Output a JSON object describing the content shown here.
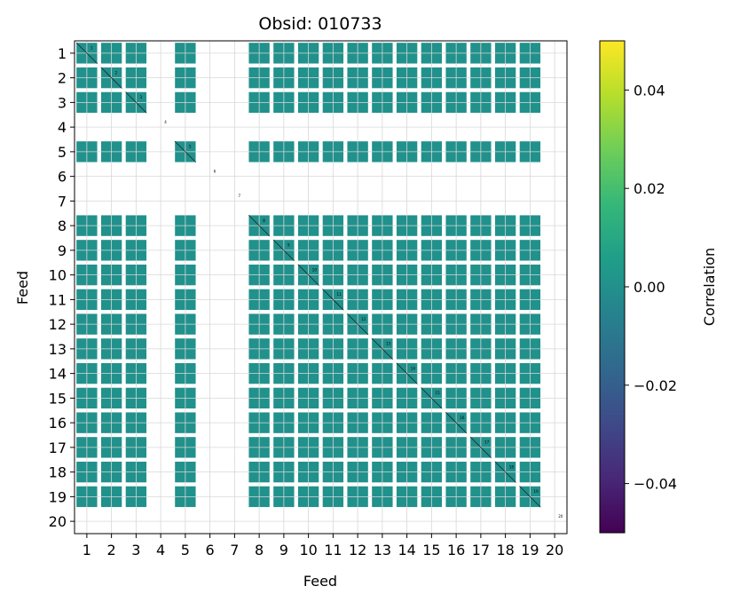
{
  "chart_data": {
    "type": "heatmap",
    "title": "Obsid: 010733",
    "xlabel": "Feed",
    "ylabel": "Feed",
    "feeds": [
      1,
      2,
      3,
      4,
      5,
      6,
      7,
      8,
      9,
      10,
      11,
      12,
      13,
      14,
      15,
      16,
      17,
      18,
      19,
      20
    ],
    "x_ticks": [
      "1",
      "2",
      "3",
      "4",
      "5",
      "6",
      "7",
      "8",
      "9",
      "10",
      "11",
      "12",
      "13",
      "14",
      "15",
      "16",
      "17",
      "18",
      "19",
      "20"
    ],
    "y_ticks": [
      "1",
      "2",
      "3",
      "4",
      "5",
      "6",
      "7",
      "8",
      "9",
      "10",
      "11",
      "12",
      "13",
      "14",
      "15",
      "16",
      "17",
      "18",
      "19",
      "20"
    ],
    "active_feeds": [
      1,
      2,
      3,
      5,
      8,
      9,
      10,
      11,
      12,
      13,
      14,
      15,
      16,
      17,
      18,
      19
    ],
    "cell_value": 0.0,
    "cell_color": "#21918c",
    "grid": true,
    "colorbar": {
      "label": "Correlation",
      "min": -0.05,
      "max": 0.05,
      "ticks": [
        -0.04,
        -0.02,
        0.0,
        0.02,
        0.04
      ],
      "tick_labels": [
        "−0.04",
        "−0.02",
        "0.00",
        "0.02",
        "0.04"
      ],
      "colormap": "viridis",
      "colors": [
        "#440154",
        "#482878",
        "#3e4a89",
        "#31688e",
        "#26828e",
        "#1f9e89",
        "#35b779",
        "#6ece58",
        "#b5de2b",
        "#fde725"
      ]
    }
  }
}
